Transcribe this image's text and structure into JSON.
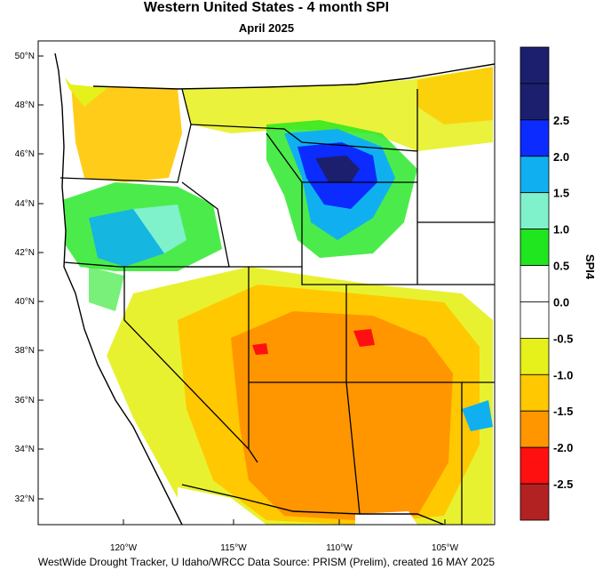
{
  "header": {
    "title": "Western United States - 4 month SPI",
    "subtitle": "April 2025"
  },
  "footer": {
    "credit": "WestWide Drought Tracker, U Idaho/WRCC Data Source: PRISM (Prelim), created 16 MAY 2025"
  },
  "map": {
    "lat_ticks": [
      "50°N",
      "48°N",
      "46°N",
      "44°N",
      "42°N",
      "40°N",
      "38°N",
      "36°N",
      "34°N",
      "32°N"
    ],
    "lon_ticks": [
      "120°W",
      "115°W",
      "110°W",
      "105°W"
    ],
    "lat_values": [
      50,
      48,
      46,
      44,
      42,
      40,
      38,
      36,
      34,
      32
    ],
    "lon_values": [
      -120,
      -115,
      -110,
      -105
    ]
  },
  "colorbar": {
    "title": "SPI4",
    "tick_labels": [
      "2.5",
      "2.0",
      "1.5",
      "1.0",
      "0.5",
      "0.0",
      "-0.5",
      "-1.0",
      "-1.5",
      "-2.0",
      "-2.5"
    ],
    "bins": [
      {
        "range": "> 3.0",
        "color": "#1b1f6e"
      },
      {
        "range": "2.5 to 3.0",
        "color": "#1b1f6e"
      },
      {
        "range": "2.0 to 2.5",
        "color": "#0b2bff"
      },
      {
        "range": "1.5 to 2.0",
        "color": "#10b0f0"
      },
      {
        "range": "1.0 to 1.5",
        "color": "#7ff2cc"
      },
      {
        "range": "0.5 to 1.0",
        "color": "#1fe61f"
      },
      {
        "range": "0.0 to 0.5",
        "color": "#ffffff"
      },
      {
        "range": "-0.5 to 0.0",
        "color": "#ffffff"
      },
      {
        "range": "-1.0 to -0.5",
        "color": "#e6f01a"
      },
      {
        "range": "-1.5 to -1.0",
        "color": "#ffc800"
      },
      {
        "range": "-2.0 to -1.5",
        "color": "#ff9600"
      },
      {
        "range": "-2.5 to -2.0",
        "color": "#ff1010"
      },
      {
        "range": "< -2.5",
        "color": "#b22222"
      }
    ]
  }
}
